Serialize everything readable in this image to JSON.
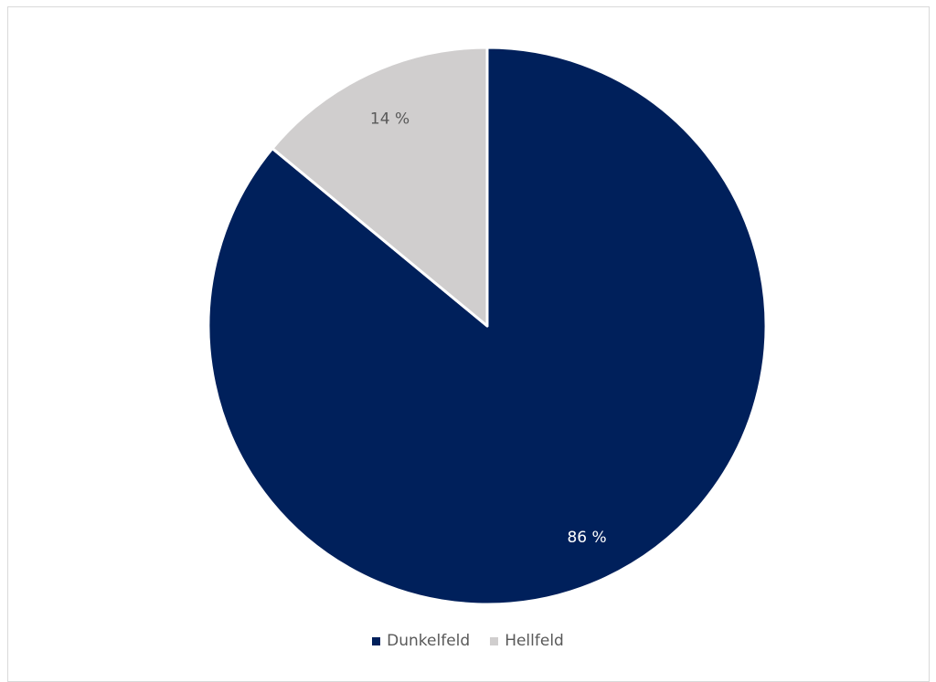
{
  "chart_data": {
    "type": "pie",
    "title": "",
    "categories": [
      "Dunkelfeld",
      "Hellfeld"
    ],
    "values": [
      86,
      14
    ],
    "value_labels": [
      "86 %",
      "14 %"
    ],
    "colors": [
      "#00205b",
      "#d0cece"
    ],
    "label_colors": [
      "#ffffff",
      "#595959"
    ],
    "start_angle_deg": 0,
    "direction": "clockwise",
    "legend": {
      "position": "bottom",
      "entries": [
        "Dunkelfeld",
        "Hellfeld"
      ]
    }
  }
}
